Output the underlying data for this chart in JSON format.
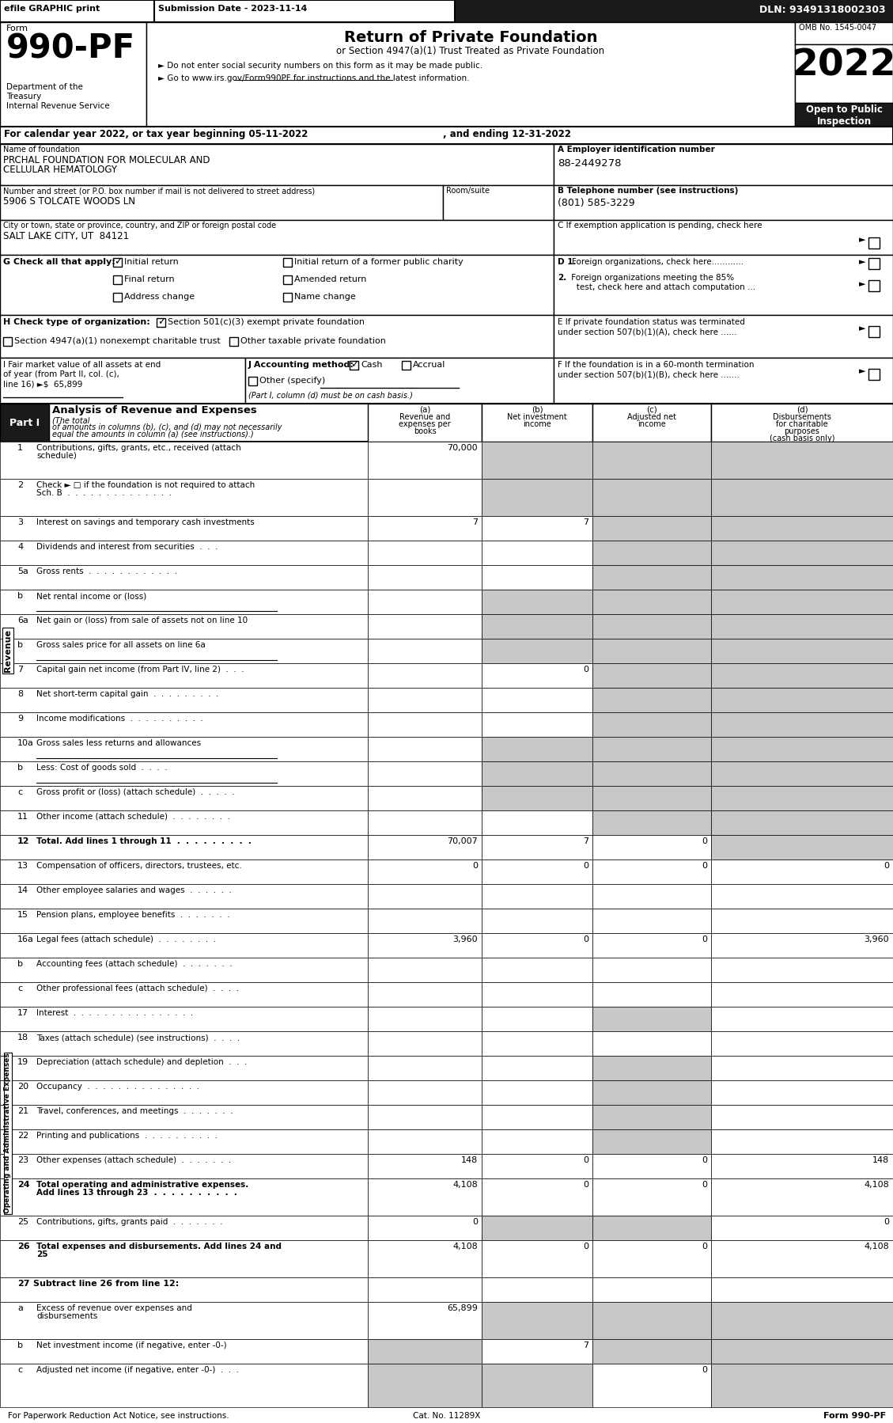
{
  "title_form": "990-PF",
  "title_main": "Return of Private Foundation",
  "title_sub": "or Section 4947(a)(1) Trust Treated as Private Foundation",
  "bullet1": "► Do not enter social security numbers on this form as it may be made public.",
  "bullet2": "► Go to www.irs.gov/Form990PF for instructions and the latest information.",
  "efile_text": "efile GRAPHIC print",
  "submission_date": "Submission Date - 2023-11-14",
  "dln": "DLN: 93491318002303",
  "omb": "OMB No. 1545-0047",
  "year": "2022",
  "open_public": "Open to Public\nInspection",
  "form_label": "Form",
  "dept1": "Department of the",
  "dept2": "Treasury",
  "dept3": "Internal Revenue Service",
  "cal_year": "For calendar year 2022, or tax year beginning 05-11-2022",
  "and_ending": ", and ending 12-31-2022",
  "name_label": "Name of foundation",
  "name_val1": "PRCHAL FOUNDATION FOR MOLECULAR AND",
  "name_val2": "CELLULAR HEMATOLOGY",
  "ein_label": "A Employer identification number",
  "ein_val": "88-2449278",
  "addr_label": "Number and street (or P.O. box number if mail is not delivered to street address)",
  "room_label": "Room/suite",
  "addr_val": "5906 S TOLCATE WOODS LN",
  "phone_label": "B Telephone number (see instructions)",
  "phone_val": "(801) 585-3229",
  "city_label": "City or town, state or province, country, and ZIP or foreign postal code",
  "city_val": "SALT LAKE CITY, UT  84121",
  "exempt_label": "C If exemption application is pending, check here",
  "g_label": "G Check all that apply:",
  "d1_label": "D 1. Foreign organizations, check here............",
  "d2_line1": "2. Foreign organizations meeting the 85%",
  "d2_line2": "   test, check here and attach computation ...",
  "e_line1": "E If private foundation status was terminated",
  "e_line2": "under section 507(b)(1)(A), check here ......",
  "h_label": "H Check type of organization:",
  "f_line1": "F If the foundation is in a 60-month termination",
  "f_line2": "under section 507(b)(1)(B), check here .......",
  "i_line1": "I Fair market value of all assets at end",
  "i_line2": "of year (from Part II, col. (c),",
  "i_line3": "line 16) ►$  65,899",
  "j_note": "(Part I, column (d) must be on cash basis.)",
  "part1_title": "Part I",
  "part1_label": "Analysis of Revenue and Expenses",
  "part1_italic": "(The total of amounts in columns (b), (c), and (d) may not necessarily equal the amounts in column (a) (see instructions).)",
  "col_a_label": "(a)",
  "col_a_text1": "Revenue and",
  "col_a_text2": "expenses per",
  "col_a_text3": "books",
  "col_b_label": "(b)",
  "col_b_text1": "Net investment",
  "col_b_text2": "income",
  "col_c_label": "(c)",
  "col_c_text1": "Adjusted net",
  "col_c_text2": "income",
  "col_d_label": "(d)",
  "col_d_text1": "Disbursements",
  "col_d_text2": "for charitable",
  "col_d_text3": "purposes",
  "col_d_text4": "(cash basis only)",
  "revenue_label": "Revenue",
  "expenses_label": "Operating and Administrative Expenses",
  "lines": [
    {
      "num": "1",
      "text1": "Contributions, gifts, grants, etc., received (attach",
      "text2": "schedule)",
      "a": "70,000",
      "b": "",
      "c": "",
      "d": "",
      "shaded": [
        false,
        true,
        true,
        true
      ]
    },
    {
      "num": "2",
      "text1": "Check ► □ if the foundation is not required to attach",
      "text2": "Sch. B  .  .  .  .  .  .  .  .  .  .  .  .  .  .",
      "a": "",
      "b": "",
      "c": "",
      "d": "",
      "shaded": [
        false,
        true,
        true,
        true
      ]
    },
    {
      "num": "3",
      "text1": "Interest on savings and temporary cash investments",
      "text2": "",
      "a": "7",
      "b": "7",
      "c": "",
      "d": "",
      "shaded": [
        false,
        false,
        true,
        true
      ]
    },
    {
      "num": "4",
      "text1": "Dividends and interest from securities  .  .  .",
      "text2": "",
      "a": "",
      "b": "",
      "c": "",
      "d": "",
      "shaded": [
        false,
        false,
        true,
        true
      ]
    },
    {
      "num": "5a",
      "text1": "Gross rents  .  .  .  .  .  .  .  .  .  .  .  .",
      "text2": "",
      "a": "",
      "b": "",
      "c": "",
      "d": "",
      "shaded": [
        false,
        false,
        true,
        true
      ]
    },
    {
      "num": "b",
      "text1": "Net rental income or (loss)",
      "text2": "",
      "a": "",
      "b": "",
      "c": "",
      "d": "",
      "shaded": [
        false,
        true,
        true,
        true
      ],
      "underline": true
    },
    {
      "num": "6a",
      "text1": "Net gain or (loss) from sale of assets not on line 10",
      "text2": "",
      "a": "",
      "b": "",
      "c": "",
      "d": "",
      "shaded": [
        false,
        true,
        true,
        true
      ]
    },
    {
      "num": "b",
      "text1": "Gross sales price for all assets on line 6a",
      "text2": "",
      "a": "",
      "b": "",
      "c": "",
      "d": "",
      "shaded": [
        false,
        true,
        true,
        true
      ],
      "underline": true
    },
    {
      "num": "7",
      "text1": "Capital gain net income (from Part IV, line 2)  .  .  .",
      "text2": "",
      "a": "",
      "b": "0",
      "c": "",
      "d": "",
      "shaded": [
        false,
        false,
        true,
        true
      ]
    },
    {
      "num": "8",
      "text1": "Net short-term capital gain  .  .  .  .  .  .  .  .  .",
      "text2": "",
      "a": "",
      "b": "",
      "c": "",
      "d": "",
      "shaded": [
        false,
        false,
        true,
        true
      ]
    },
    {
      "num": "9",
      "text1": "Income modifications  .  .  .  .  .  .  .  .  .  .",
      "text2": "",
      "a": "",
      "b": "",
      "c": "",
      "d": "",
      "shaded": [
        false,
        false,
        true,
        true
      ]
    },
    {
      "num": "10a",
      "text1": "Gross sales less returns and allowances",
      "text2": "",
      "a": "",
      "b": "",
      "c": "",
      "d": "",
      "shaded": [
        false,
        true,
        true,
        true
      ],
      "underline": true
    },
    {
      "num": "b",
      "text1": "Less: Cost of goods sold  .  .  .  .",
      "text2": "",
      "a": "",
      "b": "",
      "c": "",
      "d": "",
      "shaded": [
        false,
        true,
        true,
        true
      ],
      "underline": true
    },
    {
      "num": "c",
      "text1": "Gross profit or (loss) (attach schedule)  .  .  .  .  .",
      "text2": "",
      "a": "",
      "b": "",
      "c": "",
      "d": "",
      "shaded": [
        false,
        true,
        true,
        true
      ]
    },
    {
      "num": "11",
      "text1": "Other income (attach schedule)  .  .  .  .  .  .  .  .",
      "text2": "",
      "a": "",
      "b": "",
      "c": "",
      "d": "",
      "shaded": [
        false,
        false,
        true,
        true
      ]
    },
    {
      "num": "12",
      "text1": "Total. Add lines 1 through 11  .  .  .  .  .  .  .  .  .",
      "text2": "",
      "a": "70,007",
      "b": "7",
      "c": "0",
      "d": "",
      "shaded": [
        false,
        false,
        false,
        true
      ],
      "bold": true
    },
    {
      "num": "13",
      "text1": "Compensation of officers, directors, trustees, etc.",
      "text2": "",
      "a": "0",
      "b": "0",
      "c": "0",
      "d": "0",
      "shaded": [
        false,
        false,
        false,
        false
      ]
    },
    {
      "num": "14",
      "text1": "Other employee salaries and wages  .  .  .  .  .  .",
      "text2": "",
      "a": "",
      "b": "",
      "c": "",
      "d": "",
      "shaded": [
        false,
        false,
        false,
        false
      ]
    },
    {
      "num": "15",
      "text1": "Pension plans, employee benefits  .  .  .  .  .  .  .",
      "text2": "",
      "a": "",
      "b": "",
      "c": "",
      "d": "",
      "shaded": [
        false,
        false,
        false,
        false
      ]
    },
    {
      "num": "16a",
      "text1": "Legal fees (attach schedule)  .  .  .  .  .  .  .  .",
      "text2": "",
      "a": "3,960",
      "b": "0",
      "c": "0",
      "d": "3,960",
      "shaded": [
        false,
        false,
        false,
        false
      ]
    },
    {
      "num": "b",
      "text1": "Accounting fees (attach schedule)  .  .  .  .  .  .  .",
      "text2": "",
      "a": "",
      "b": "",
      "c": "",
      "d": "",
      "shaded": [
        false,
        false,
        false,
        false
      ]
    },
    {
      "num": "c",
      "text1": "Other professional fees (attach schedule)  .  .  .  .",
      "text2": "",
      "a": "",
      "b": "",
      "c": "",
      "d": "",
      "shaded": [
        false,
        false,
        false,
        false
      ]
    },
    {
      "num": "17",
      "text1": "Interest  .  .  .  .  .  .  .  .  .  .  .  .  .  .  .  .",
      "text2": "",
      "a": "",
      "b": "",
      "c": "",
      "d": "",
      "shaded": [
        false,
        false,
        true,
        false
      ]
    },
    {
      "num": "18",
      "text1": "Taxes (attach schedule) (see instructions)  .  .  .  .",
      "text2": "",
      "a": "",
      "b": "",
      "c": "",
      "d": "",
      "shaded": [
        false,
        false,
        false,
        false
      ]
    },
    {
      "num": "19",
      "text1": "Depreciation (attach schedule) and depletion  .  .  .",
      "text2": "",
      "a": "",
      "b": "",
      "c": "",
      "d": "",
      "shaded": [
        false,
        false,
        true,
        false
      ]
    },
    {
      "num": "20",
      "text1": "Occupancy  .  .  .  .  .  .  .  .  .  .  .  .  .  .  .",
      "text2": "",
      "a": "",
      "b": "",
      "c": "",
      "d": "",
      "shaded": [
        false,
        false,
        true,
        false
      ]
    },
    {
      "num": "21",
      "text1": "Travel, conferences, and meetings  .  .  .  .  .  .  .",
      "text2": "",
      "a": "",
      "b": "",
      "c": "",
      "d": "",
      "shaded": [
        false,
        false,
        true,
        false
      ]
    },
    {
      "num": "22",
      "text1": "Printing and publications  .  .  .  .  .  .  .  .  .  .",
      "text2": "",
      "a": "",
      "b": "",
      "c": "",
      "d": "",
      "shaded": [
        false,
        false,
        true,
        false
      ]
    },
    {
      "num": "23",
      "text1": "Other expenses (attach schedule)  .  .  .  .  .  .  .",
      "text2": "",
      "a": "148",
      "b": "0",
      "c": "0",
      "d": "148",
      "shaded": [
        false,
        false,
        false,
        false
      ]
    },
    {
      "num": "24",
      "text1": "Total operating and administrative expenses.",
      "text2": "Add lines 13 through 23  .  .  .  .  .  .  .  .  .  .",
      "a": "4,108",
      "b": "0",
      "c": "0",
      "d": "4,108",
      "shaded": [
        false,
        false,
        false,
        false
      ],
      "bold": true
    },
    {
      "num": "25",
      "text1": "Contributions, gifts, grants paid  .  .  .  .  .  .  .",
      "text2": "",
      "a": "0",
      "b": "",
      "c": "",
      "d": "0",
      "shaded": [
        false,
        true,
        true,
        false
      ]
    },
    {
      "num": "26",
      "text1": "Total expenses and disbursements. Add lines 24 and",
      "text2": "25",
      "a": "4,108",
      "b": "0",
      "c": "0",
      "d": "4,108",
      "shaded": [
        false,
        false,
        false,
        false
      ],
      "bold": true
    },
    {
      "num": "27",
      "text1": "Subtract line 26 from line 12:",
      "text2": "",
      "a": "",
      "b": "",
      "c": "",
      "d": "",
      "shaded": [
        false,
        false,
        false,
        false
      ],
      "bold": true,
      "header_only": true
    },
    {
      "num": "a",
      "text1": "Excess of revenue over expenses and",
      "text2": "disbursements",
      "a": "65,899",
      "b": "",
      "c": "",
      "d": "",
      "shaded": [
        false,
        true,
        true,
        true
      ]
    },
    {
      "num": "b",
      "text1": "Net investment income (if negative, enter -0-)",
      "text2": "",
      "a": "",
      "b": "7",
      "c": "",
      "d": "",
      "shaded": [
        true,
        false,
        true,
        true
      ]
    },
    {
      "num": "c",
      "text1": "Adjusted net income (if negative, enter -0-)  .  .  .",
      "text2": "",
      "a": "",
      "b": "",
      "c": "0",
      "d": "",
      "shaded": [
        true,
        true,
        false,
        true
      ]
    }
  ],
  "footer_left": "For Paperwork Reduction Act Notice, see instructions.",
  "footer_center": "Cat. No. 11289X",
  "footer_right": "Form 990-PF",
  "bg_color": "#ffffff",
  "shade_color": "#c8c8c8",
  "num_revenue_lines": 16
}
